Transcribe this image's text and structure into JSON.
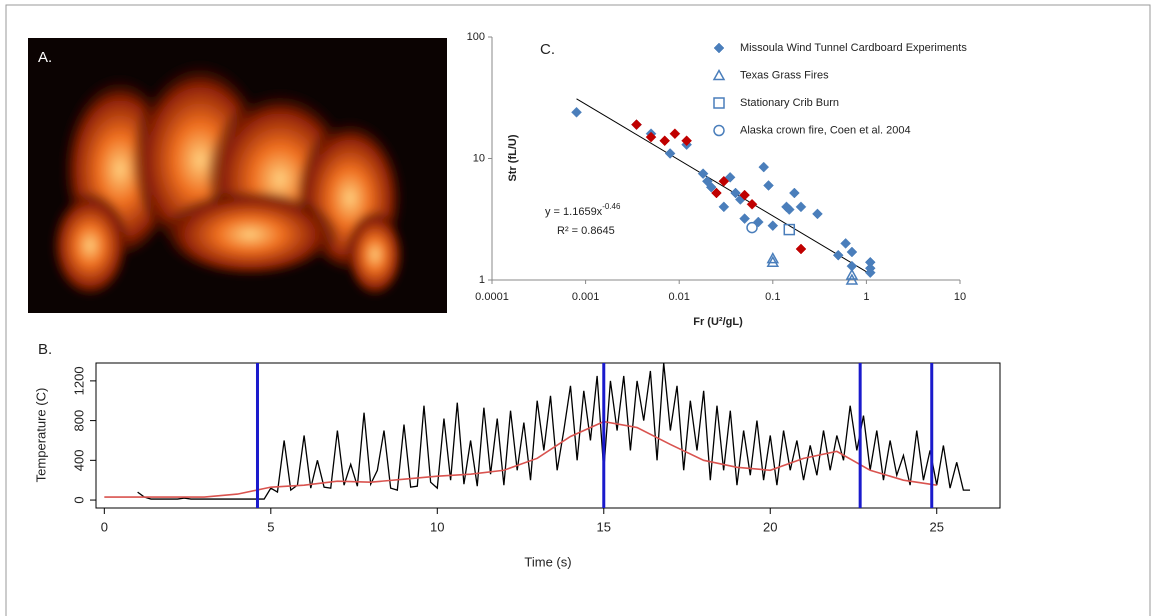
{
  "photo": {
    "label": "A."
  },
  "chart_data": [
    {
      "type": "scatter",
      "title": "C.",
      "xlabel": "Fr (U²/gL)",
      "ylabel": "Str (fL/U)",
      "xlog": true,
      "ylog": true,
      "xlim": [
        0.0001,
        10
      ],
      "ylim": [
        1,
        100
      ],
      "xticks": [
        0.0001,
        0.001,
        0.01,
        0.1,
        1,
        10
      ],
      "yticks": [
        1,
        10,
        100
      ],
      "legend": "top-right",
      "series": [
        {
          "name": "Missoula Wind Tunnel Cardboard Experiments",
          "color": "#4a7ebb",
          "marker": "diamond",
          "filled": true,
          "x": [
            0.0008,
            0.0035,
            0.005,
            0.008,
            0.012,
            0.018,
            0.02,
            0.022,
            0.03,
            0.035,
            0.04,
            0.045,
            0.05,
            0.07,
            0.08,
            0.09,
            0.1,
            0.14,
            0.15,
            0.17,
            0.2,
            0.3,
            0.5,
            0.6,
            0.7,
            1.1,
            1.1,
            1.1,
            0.7
          ],
          "values": [
            24,
            19,
            16,
            11,
            13,
            7.5,
            6.5,
            5.8,
            4,
            7,
            5.2,
            4.6,
            3.2,
            3,
            8.5,
            6,
            2.8,
            4,
            3.8,
            5.2,
            4,
            3.5,
            1.6,
            2,
            1.7,
            1.4,
            1.25,
            1.15,
            1.3
          ]
        },
        {
          "color": "#c00000",
          "marker": "diamond",
          "filled": true,
          "x": [
            0.0035,
            0.005,
            0.007,
            0.009,
            0.012,
            0.025,
            0.03,
            0.05,
            0.06,
            0.2
          ],
          "values": [
            19,
            15,
            14,
            16,
            14,
            5.2,
            6.5,
            5,
            4.2,
            1.8
          ]
        },
        {
          "name": "Texas Grass Fires",
          "color": "#4a7ebb",
          "marker": "triangle",
          "filled": false,
          "x": [
            0.1,
            0.1,
            0.7,
            0.7
          ],
          "values": [
            1.5,
            1.4,
            1.1,
            1.0
          ]
        },
        {
          "name": "Stationary Crib Burn",
          "color": "#4a7ebb",
          "marker": "square",
          "filled": false,
          "x": [
            0.15
          ],
          "values": [
            2.6
          ]
        },
        {
          "name": "Alaska crown fire, Coen et al. 2004",
          "color": "#4a7ebb",
          "marker": "circle",
          "filled": false,
          "x": [
            0.06
          ],
          "values": [
            2.7
          ]
        }
      ],
      "trendline": {
        "color": "#000000",
        "x": [
          0.0008,
          1.1
        ],
        "values": [
          31,
          1.12
        ]
      },
      "annotations": {
        "equation": "y = 1.1659x",
        "equation_exponent": "-0.46",
        "r_squared": "R² = 0.8645"
      }
    },
    {
      "type": "line",
      "title": "B.",
      "xlabel": "Time (s)",
      "ylabel": "Temperature (C)",
      "xlim": [
        -0.25,
        26.9
      ],
      "ylim": [
        -80,
        1380
      ],
      "xticks": [
        0,
        5,
        10,
        15,
        20,
        25
      ],
      "yticks": [
        0,
        400,
        800,
        1200
      ],
      "vlines": {
        "color": "#1a1acc",
        "x": [
          4.6,
          15.0,
          22.7,
          24.85
        ]
      },
      "series": [
        {
          "color": "#000000",
          "x": [
            1,
            1.2,
            1.4,
            1.6,
            1.8,
            2,
            2.2,
            2.4,
            2.6,
            2.8,
            3,
            3.2,
            3.4,
            3.6,
            3.8,
            4,
            4.2,
            4.4,
            4.6,
            4.8,
            5,
            5.2,
            5.4,
            5.6,
            5.8,
            6,
            6.2,
            6.4,
            6.6,
            6.8,
            7,
            7.2,
            7.4,
            7.6,
            7.8,
            8,
            8.2,
            8.4,
            8.6,
            8.8,
            9,
            9.2,
            9.4,
            9.6,
            9.8,
            10,
            10.2,
            10.4,
            10.6,
            10.8,
            11,
            11.2,
            11.4,
            11.6,
            11.8,
            12,
            12.2,
            12.4,
            12.6,
            12.8,
            13,
            13.2,
            13.4,
            13.6,
            13.8,
            14,
            14.2,
            14.4,
            14.6,
            14.8,
            15,
            15.2,
            15.4,
            15.6,
            15.8,
            16,
            16.2,
            16.4,
            16.6,
            16.8,
            17,
            17.2,
            17.4,
            17.6,
            17.8,
            18,
            18.2,
            18.4,
            18.6,
            18.8,
            19,
            19.2,
            19.4,
            19.6,
            19.8,
            20,
            20.2,
            20.4,
            20.6,
            20.8,
            21,
            21.2,
            21.4,
            21.6,
            21.8,
            22,
            22.2,
            22.4,
            22.6,
            22.8,
            23,
            23.2,
            23.4,
            23.6,
            23.8,
            24,
            24.2,
            24.4,
            24.6,
            24.8,
            25,
            25.2,
            25.4,
            25.6,
            25.8,
            26
          ],
          "values": [
            80,
            30,
            10,
            10,
            10,
            10,
            10,
            20,
            10,
            10,
            10,
            10,
            10,
            10,
            10,
            10,
            10,
            10,
            10,
            10,
            120,
            80,
            600,
            100,
            150,
            650,
            120,
            400,
            130,
            120,
            700,
            150,
            360,
            140,
            880,
            160,
            300,
            700,
            120,
            100,
            760,
            130,
            140,
            950,
            180,
            120,
            820,
            200,
            980,
            160,
            600,
            140,
            930,
            260,
            820,
            150,
            900,
            300,
            780,
            200,
            1000,
            500,
            1050,
            300,
            700,
            1150,
            400,
            1100,
            600,
            1250,
            300,
            1200,
            700,
            1250,
            500,
            1200,
            800,
            1300,
            400,
            1380,
            700,
            1150,
            300,
            1000,
            500,
            1100,
            200,
            950,
            300,
            900,
            150,
            700,
            250,
            800,
            200,
            650,
            150,
            700,
            300,
            600,
            200,
            550,
            250,
            700,
            300,
            650,
            400,
            950,
            500,
            850,
            300,
            700,
            200,
            600,
            250,
            450,
            150,
            700,
            200,
            500,
            150,
            550,
            120,
            380,
            100,
            100
          ]
        },
        {
          "color": "#d9534f",
          "x": [
            0,
            1,
            2,
            3,
            4,
            5,
            6,
            7,
            8,
            9,
            10,
            11,
            12,
            13,
            14,
            15,
            16,
            17,
            18,
            19,
            20,
            21,
            22,
            23,
            24,
            25
          ],
          "values": [
            30,
            30,
            30,
            30,
            60,
            130,
            150,
            190,
            180,
            210,
            240,
            260,
            300,
            420,
            640,
            790,
            730,
            560,
            400,
            330,
            300,
            420,
            490,
            300,
            200,
            150
          ]
        }
      ]
    }
  ]
}
